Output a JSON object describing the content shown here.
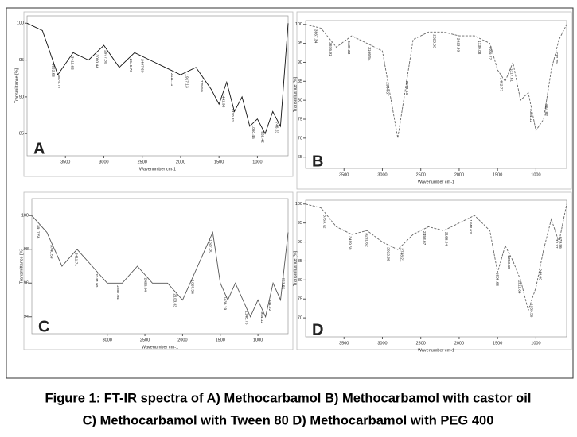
{
  "caption": [
    "Figure 1: FT-IR spectra of A) Methocarbamol B) Methocarbamol with castor oil",
    "C) Methocarbamol with Tween 80 D) Methocarbamol with PEG 400"
  ],
  "chart_data": [
    {
      "type": "line",
      "title": "A",
      "x_label": "Wavenumber cm-1",
      "y_label": "Transmittance [%]",
      "color": "#111111",
      "dashed": false,
      "x": [
        4000,
        3800,
        3600,
        3400,
        3200,
        3000,
        2800,
        2600,
        2400,
        2200,
        2000,
        1800,
        1600,
        1500,
        1400,
        1300,
        1200,
        1100,
        1000,
        900,
        800,
        700,
        600
      ],
      "values": [
        100,
        99,
        93,
        96,
        95,
        97,
        94,
        96,
        95,
        94,
        93,
        94,
        91,
        89,
        92,
        88,
        90,
        86,
        87,
        85,
        88,
        86,
        100
      ],
      "xlim": [
        4000,
        600
      ],
      "ylim": [
        82,
        101
      ],
      "xticks": [
        3500,
        3000,
        2500,
        2000,
        1500,
        1000
      ],
      "yticks": [
        100,
        95,
        90,
        85
      ],
      "annotations": [
        {
          "x": 3662.56,
          "label": "3662.56"
        },
        {
          "x": 3579.77,
          "label": "3579.77"
        },
        {
          "x": 3411.66,
          "label": "3411.66"
        },
        {
          "x": 3090.44,
          "label": "3090.44"
        },
        {
          "x": 2977.8,
          "label": "2977.80"
        },
        {
          "x": 2646.76,
          "label": "2646.76"
        },
        {
          "x": 2497.6,
          "label": "2497.60"
        },
        {
          "x": 2111.11,
          "label": "2111.11"
        },
        {
          "x": 1917.13,
          "label": "1917.13"
        },
        {
          "x": 1725.5,
          "label": "1725.50"
        },
        {
          "x": 1441.93,
          "label": "1441.93"
        },
        {
          "x": 1320.31,
          "label": "1320.31"
        },
        {
          "x": 1050.45,
          "label": "1050.45"
        },
        {
          "x": 932.42,
          "label": "932.42"
        },
        {
          "x": 746.23,
          "label": "746.23"
        }
      ]
    },
    {
      "type": "line",
      "title": "B",
      "x_label": "Wavenumber cm-1",
      "y_label": "Transmittance [%]",
      "color": "#666666",
      "dashed": true,
      "x": [
        4000,
        3800,
        3600,
        3400,
        3200,
        3000,
        2800,
        2600,
        2400,
        2200,
        2000,
        1800,
        1600,
        1500,
        1400,
        1300,
        1200,
        1100,
        1000,
        900,
        800,
        700,
        600
      ],
      "values": [
        100,
        99,
        94,
        97,
        95,
        93,
        70,
        96,
        98,
        98,
        97,
        97,
        95,
        88,
        85,
        90,
        80,
        82,
        72,
        75,
        88,
        96,
        100
      ],
      "xlim": [
        4000,
        600
      ],
      "ylim": [
        62,
        101
      ],
      "xticks": [
        3500,
        3000,
        2500,
        2000,
        1500,
        1000
      ],
      "yticks": [
        100,
        95,
        90,
        85,
        80,
        75,
        70,
        65
      ],
      "annotations": [
        {
          "x": 3867.34,
          "label": "3867.34"
        },
        {
          "x": 3676.91,
          "label": "3676.91"
        },
        {
          "x": 3439.33,
          "label": "3439.33"
        },
        {
          "x": 3166.54,
          "label": "3166.54"
        },
        {
          "x": 2934.07,
          "label": "2934.07"
        },
        {
          "x": 2678.64,
          "label": "2678.64"
        },
        {
          "x": 2323.0,
          "label": "2323.00"
        },
        {
          "x": 2013.3,
          "label": "2013.30"
        },
        {
          "x": 1739.08,
          "label": "1739.08"
        },
        {
          "x": 1599.77,
          "label": "1599.77"
        },
        {
          "x": 1452.77,
          "label": "1452.77"
        },
        {
          "x": 1317.61,
          "label": "1317.61"
        },
        {
          "x": 1064.12,
          "label": "1064.12"
        },
        {
          "x": 864.82,
          "label": "864.82"
        },
        {
          "x": 732.25,
          "label": "732.25"
        }
      ]
    },
    {
      "type": "line",
      "title": "C",
      "x_label": "Wavenumber cm-1",
      "y_label": "Transmittance [%]",
      "color": "#555555",
      "dashed": false,
      "x": [
        4000,
        3800,
        3600,
        3400,
        3200,
        3000,
        2800,
        2600,
        2400,
        2200,
        2000,
        1800,
        1600,
        1500,
        1400,
        1300,
        1200,
        1100,
        1000,
        900,
        800,
        700,
        600
      ],
      "values": [
        100,
        99,
        97,
        98,
        97,
        96,
        96,
        97,
        96,
        96,
        95,
        97,
        99,
        96,
        95,
        96,
        95,
        94,
        95,
        94,
        96,
        95,
        99
      ],
      "xlim": [
        4000,
        600
      ],
      "ylim": [
        93,
        101
      ],
      "xticks": [
        3000,
        2500,
        2000,
        1500,
        1000
      ],
      "yticks": [
        100,
        98,
        96,
        94
      ],
      "annotations": [
        {
          "x": 3917.56,
          "label": "3917.56"
        },
        {
          "x": 3740.59,
          "label": "3740.59"
        },
        {
          "x": 3411.71,
          "label": "3411.71"
        },
        {
          "x": 3144.0,
          "label": "3144.00"
        },
        {
          "x": 2857.04,
          "label": "2857.04"
        },
        {
          "x": 2490.64,
          "label": "2490.64"
        },
        {
          "x": 2103.83,
          "label": "2103.83"
        },
        {
          "x": 1867.54,
          "label": "1867.54"
        },
        {
          "x": 1627.3,
          "label": "1627.30"
        },
        {
          "x": 1436.19,
          "label": "1436.19"
        },
        {
          "x": 1148.76,
          "label": "1148.76"
        },
        {
          "x": 944.12,
          "label": "944.12"
        },
        {
          "x": 841.22,
          "label": "841.22"
        },
        {
          "x": 663.55,
          "label": "663.55"
        }
      ]
    },
    {
      "type": "line",
      "title": "D",
      "x_label": "Wavenumber cm-1",
      "y_label": "Transmittance [%]",
      "color": "#666666",
      "dashed": true,
      "x": [
        4000,
        3800,
        3600,
        3400,
        3200,
        3000,
        2800,
        2600,
        2400,
        2200,
        2000,
        1800,
        1600,
        1500,
        1400,
        1300,
        1200,
        1100,
        1000,
        900,
        800,
        700,
        600
      ],
      "values": [
        100,
        99,
        94,
        92,
        93,
        90,
        88,
        92,
        94,
        93,
        95,
        97,
        93,
        82,
        89,
        85,
        80,
        72,
        78,
        88,
        96,
        90,
        100
      ],
      "xlim": [
        4000,
        600
      ],
      "ylim": [
        65,
        101
      ],
      "xticks": [
        3500,
        3000,
        2500,
        2000,
        1500,
        1000
      ],
      "yticks": [
        100,
        95,
        90,
        85,
        80,
        75,
        70
      ],
      "annotations": [
        {
          "x": 3753.72,
          "label": "3753.72"
        },
        {
          "x": 3419.69,
          "label": "3419.69"
        },
        {
          "x": 3201.62,
          "label": "3201.62"
        },
        {
          "x": 2922.36,
          "label": "2922.36"
        },
        {
          "x": 2748.21,
          "label": "2748.21"
        },
        {
          "x": 2453.67,
          "label": "2453.67"
        },
        {
          "x": 2168.94,
          "label": "2168.94"
        },
        {
          "x": 1848.63,
          "label": "1848.63"
        },
        {
          "x": 1505.66,
          "label": "1505.66"
        },
        {
          "x": 1353.49,
          "label": "1353.49"
        },
        {
          "x": 1211.64,
          "label": "1211.64"
        },
        {
          "x": 1059.56,
          "label": "1059.56"
        },
        {
          "x": 944.0,
          "label": "944.00"
        },
        {
          "x": 733.77,
          "label": "733.77"
        },
        {
          "x": 679.96,
          "label": "679.96"
        }
      ]
    }
  ]
}
